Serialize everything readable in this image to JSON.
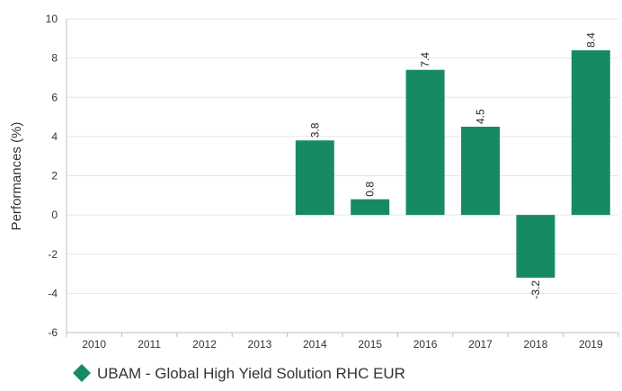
{
  "chart_data": {
    "type": "bar",
    "categories": [
      "2010",
      "2011",
      "2012",
      "2013",
      "2014",
      "2015",
      "2016",
      "2017",
      "2018",
      "2019"
    ],
    "series": [
      {
        "name": "UBAM - Global High Yield Solution RHC EUR",
        "values": [
          null,
          null,
          null,
          null,
          3.8,
          0.8,
          7.4,
          4.5,
          -3.2,
          8.4
        ],
        "data_labels": [
          "",
          "",
          "",
          "",
          "3.8",
          "0.8",
          "7.4",
          "4.5",
          "-3.2",
          "8.4"
        ]
      }
    ],
    "title": "",
    "xlabel": "",
    "ylabel": "Performances (%)",
    "ylim": [
      -6,
      10
    ],
    "yticks": [
      -6,
      -4,
      -2,
      0,
      2,
      4,
      6,
      8,
      10
    ],
    "ytick_labels": [
      "-6",
      "-4",
      "-2",
      "0",
      "2",
      "4",
      "6",
      "8",
      "10"
    ],
    "grid": true,
    "legend": {
      "position": "bottom-left",
      "marker": "diamond",
      "label": "UBAM - Global High Yield Solution RHC EUR"
    },
    "colors": {
      "bar": "#168a64",
      "grid": "#e6e6e6",
      "axis": "#bfbfbf",
      "text": "#333333"
    }
  }
}
